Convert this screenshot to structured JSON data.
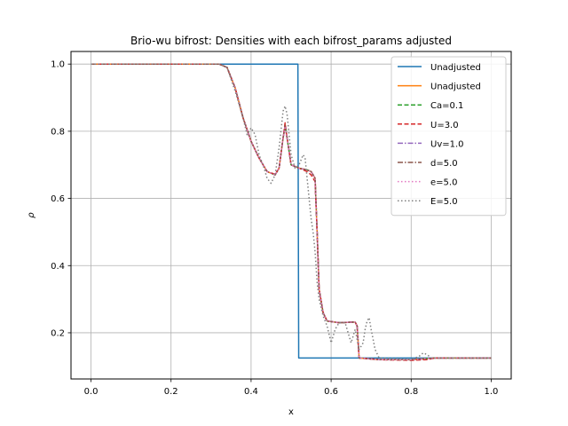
{
  "chart_data": {
    "type": "line",
    "title": "Brio-wu bifrost: Densities with each bifrost_params adjusted",
    "xlabel": "x",
    "ylabel": "ρ",
    "xlim": [
      -0.05,
      1.05
    ],
    "ylim": [
      0.0625,
      1.0375
    ],
    "xticks": [
      0.0,
      0.2,
      0.4,
      0.6,
      0.8,
      1.0
    ],
    "xtick_labels": [
      "0.0",
      "0.2",
      "0.4",
      "0.6",
      "0.8",
      "1.0"
    ],
    "yticks": [
      0.2,
      0.4,
      0.6,
      0.8,
      1.0
    ],
    "ytick_labels": [
      "0.2",
      "0.4",
      "0.6",
      "0.8",
      "1.0"
    ],
    "grid": true,
    "legend_position": "top-right",
    "series": [
      {
        "name": "Unadjusted",
        "color": "#1f77b4",
        "dash": "solid",
        "points": [
          [
            0.0,
            1.0
          ],
          [
            0.517,
            1.0
          ],
          [
            0.517,
            0.997
          ],
          [
            0.519,
            0.125
          ],
          [
            1.0,
            0.125
          ]
        ]
      },
      {
        "name": "Unadjusted",
        "color": "#ff7f0e",
        "dash": "solid",
        "points": [
          [
            0.0,
            1.0
          ],
          [
            0.32,
            1.0
          ],
          [
            0.34,
            0.99
          ],
          [
            0.36,
            0.93
          ],
          [
            0.38,
            0.84
          ],
          [
            0.4,
            0.77
          ],
          [
            0.42,
            0.72
          ],
          [
            0.44,
            0.68
          ],
          [
            0.46,
            0.67
          ],
          [
            0.47,
            0.69
          ],
          [
            0.48,
            0.78
          ],
          [
            0.485,
            0.815
          ],
          [
            0.49,
            0.78
          ],
          [
            0.5,
            0.7
          ],
          [
            0.52,
            0.69
          ],
          [
            0.54,
            0.685
          ],
          [
            0.55,
            0.68
          ],
          [
            0.56,
            0.66
          ],
          [
            0.565,
            0.5
          ],
          [
            0.57,
            0.33
          ],
          [
            0.58,
            0.26
          ],
          [
            0.59,
            0.235
          ],
          [
            0.62,
            0.23
          ],
          [
            0.66,
            0.232
          ],
          [
            0.665,
            0.22
          ],
          [
            0.67,
            0.125
          ],
          [
            0.72,
            0.12
          ],
          [
            0.8,
            0.12
          ],
          [
            0.86,
            0.125
          ],
          [
            1.0,
            0.125
          ]
        ]
      },
      {
        "name": "Ca=0.1",
        "color": "#2ca02c",
        "dash": "5,2.5",
        "points": [
          [
            0.0,
            1.0
          ],
          [
            0.32,
            1.0
          ],
          [
            0.34,
            0.99
          ],
          [
            0.36,
            0.93
          ],
          [
            0.38,
            0.84
          ],
          [
            0.4,
            0.77
          ],
          [
            0.42,
            0.72
          ],
          [
            0.44,
            0.68
          ],
          [
            0.46,
            0.67
          ],
          [
            0.47,
            0.69
          ],
          [
            0.48,
            0.78
          ],
          [
            0.485,
            0.82
          ],
          [
            0.49,
            0.78
          ],
          [
            0.5,
            0.7
          ],
          [
            0.52,
            0.69
          ],
          [
            0.54,
            0.685
          ],
          [
            0.55,
            0.68
          ],
          [
            0.56,
            0.66
          ],
          [
            0.565,
            0.5
          ],
          [
            0.57,
            0.33
          ],
          [
            0.58,
            0.26
          ],
          [
            0.59,
            0.235
          ],
          [
            0.62,
            0.23
          ],
          [
            0.66,
            0.232
          ],
          [
            0.665,
            0.22
          ],
          [
            0.67,
            0.125
          ],
          [
            0.72,
            0.12
          ],
          [
            0.8,
            0.12
          ],
          [
            0.86,
            0.125
          ],
          [
            1.0,
            0.125
          ]
        ]
      },
      {
        "name": "U=3.0",
        "color": "#d62728",
        "dash": "5,2.5",
        "points": [
          [
            0.0,
            1.0
          ],
          [
            0.32,
            1.0
          ],
          [
            0.34,
            0.99
          ],
          [
            0.36,
            0.93
          ],
          [
            0.38,
            0.84
          ],
          [
            0.4,
            0.77
          ],
          [
            0.42,
            0.72
          ],
          [
            0.44,
            0.68
          ],
          [
            0.46,
            0.672
          ],
          [
            0.47,
            0.69
          ],
          [
            0.48,
            0.78
          ],
          [
            0.485,
            0.825
          ],
          [
            0.49,
            0.78
          ],
          [
            0.5,
            0.7
          ],
          [
            0.52,
            0.69
          ],
          [
            0.54,
            0.68
          ],
          [
            0.55,
            0.67
          ],
          [
            0.56,
            0.65
          ],
          [
            0.565,
            0.5
          ],
          [
            0.57,
            0.33
          ],
          [
            0.58,
            0.26
          ],
          [
            0.59,
            0.235
          ],
          [
            0.62,
            0.23
          ],
          [
            0.66,
            0.232
          ],
          [
            0.665,
            0.22
          ],
          [
            0.67,
            0.125
          ],
          [
            0.72,
            0.12
          ],
          [
            0.8,
            0.118
          ],
          [
            0.84,
            0.12
          ],
          [
            0.86,
            0.125
          ],
          [
            1.0,
            0.125
          ]
        ]
      },
      {
        "name": "Uv=1.0",
        "color": "#9467bd",
        "dash": "6,2,1.5,2",
        "points": [
          [
            0.0,
            1.0
          ],
          [
            0.32,
            1.0
          ],
          [
            0.34,
            0.99
          ],
          [
            0.36,
            0.93
          ],
          [
            0.38,
            0.84
          ],
          [
            0.4,
            0.77
          ],
          [
            0.42,
            0.72
          ],
          [
            0.44,
            0.68
          ],
          [
            0.46,
            0.67
          ],
          [
            0.47,
            0.69
          ],
          [
            0.48,
            0.78
          ],
          [
            0.485,
            0.815
          ],
          [
            0.49,
            0.78
          ],
          [
            0.5,
            0.7
          ],
          [
            0.52,
            0.69
          ],
          [
            0.54,
            0.685
          ],
          [
            0.55,
            0.68
          ],
          [
            0.56,
            0.66
          ],
          [
            0.565,
            0.5
          ],
          [
            0.57,
            0.33
          ],
          [
            0.58,
            0.26
          ],
          [
            0.59,
            0.235
          ],
          [
            0.62,
            0.23
          ],
          [
            0.66,
            0.232
          ],
          [
            0.665,
            0.22
          ],
          [
            0.67,
            0.125
          ],
          [
            0.72,
            0.12
          ],
          [
            0.8,
            0.12
          ],
          [
            0.86,
            0.125
          ],
          [
            1.0,
            0.125
          ]
        ]
      },
      {
        "name": "d=5.0",
        "color": "#8c564b",
        "dash": "6,2,1.5,2",
        "points": [
          [
            0.0,
            1.0
          ],
          [
            0.32,
            1.0
          ],
          [
            0.34,
            0.99
          ],
          [
            0.36,
            0.93
          ],
          [
            0.38,
            0.84
          ],
          [
            0.4,
            0.77
          ],
          [
            0.42,
            0.72
          ],
          [
            0.44,
            0.68
          ],
          [
            0.46,
            0.67
          ],
          [
            0.47,
            0.69
          ],
          [
            0.48,
            0.78
          ],
          [
            0.485,
            0.815
          ],
          [
            0.49,
            0.78
          ],
          [
            0.5,
            0.7
          ],
          [
            0.52,
            0.69
          ],
          [
            0.54,
            0.685
          ],
          [
            0.55,
            0.68
          ],
          [
            0.56,
            0.66
          ],
          [
            0.565,
            0.5
          ],
          [
            0.57,
            0.33
          ],
          [
            0.58,
            0.26
          ],
          [
            0.59,
            0.235
          ],
          [
            0.62,
            0.23
          ],
          [
            0.66,
            0.232
          ],
          [
            0.665,
            0.22
          ],
          [
            0.67,
            0.125
          ],
          [
            0.72,
            0.12
          ],
          [
            0.8,
            0.12
          ],
          [
            0.86,
            0.125
          ],
          [
            1.0,
            0.125
          ]
        ]
      },
      {
        "name": "e=5.0",
        "color": "#e377c2",
        "dash": "1.5,2.5",
        "points": [
          [
            0.0,
            1.0
          ],
          [
            0.32,
            1.0
          ],
          [
            0.34,
            0.99
          ],
          [
            0.36,
            0.93
          ],
          [
            0.38,
            0.84
          ],
          [
            0.4,
            0.77
          ],
          [
            0.42,
            0.72
          ],
          [
            0.44,
            0.68
          ],
          [
            0.46,
            0.67
          ],
          [
            0.47,
            0.69
          ],
          [
            0.48,
            0.78
          ],
          [
            0.485,
            0.815
          ],
          [
            0.49,
            0.78
          ],
          [
            0.5,
            0.7
          ],
          [
            0.52,
            0.69
          ],
          [
            0.54,
            0.685
          ],
          [
            0.55,
            0.68
          ],
          [
            0.56,
            0.66
          ],
          [
            0.565,
            0.5
          ],
          [
            0.57,
            0.33
          ],
          [
            0.58,
            0.26
          ],
          [
            0.59,
            0.235
          ],
          [
            0.62,
            0.23
          ],
          [
            0.66,
            0.232
          ],
          [
            0.665,
            0.22
          ],
          [
            0.67,
            0.125
          ],
          [
            0.72,
            0.12
          ],
          [
            0.8,
            0.12
          ],
          [
            0.86,
            0.125
          ],
          [
            1.0,
            0.125
          ]
        ]
      },
      {
        "name": "E=5.0",
        "color": "#7f7f7f",
        "dash": "1.5,2.5",
        "points": [
          [
            0.0,
            1.0
          ],
          [
            0.32,
            1.0
          ],
          [
            0.34,
            0.99
          ],
          [
            0.36,
            0.92
          ],
          [
            0.38,
            0.84
          ],
          [
            0.39,
            0.79
          ],
          [
            0.4,
            0.81
          ],
          [
            0.41,
            0.79
          ],
          [
            0.42,
            0.73
          ],
          [
            0.43,
            0.7
          ],
          [
            0.44,
            0.66
          ],
          [
            0.45,
            0.645
          ],
          [
            0.46,
            0.67
          ],
          [
            0.47,
            0.75
          ],
          [
            0.48,
            0.86
          ],
          [
            0.485,
            0.875
          ],
          [
            0.49,
            0.85
          ],
          [
            0.5,
            0.73
          ],
          [
            0.51,
            0.69
          ],
          [
            0.52,
            0.7
          ],
          [
            0.53,
            0.73
          ],
          [
            0.535,
            0.72
          ],
          [
            0.54,
            0.66
          ],
          [
            0.545,
            0.6
          ],
          [
            0.55,
            0.54
          ],
          [
            0.555,
            0.5
          ],
          [
            0.56,
            0.44
          ],
          [
            0.565,
            0.35
          ],
          [
            0.57,
            0.3
          ],
          [
            0.58,
            0.25
          ],
          [
            0.59,
            0.22
          ],
          [
            0.6,
            0.17
          ],
          [
            0.61,
            0.21
          ],
          [
            0.62,
            0.23
          ],
          [
            0.635,
            0.23
          ],
          [
            0.645,
            0.19
          ],
          [
            0.65,
            0.17
          ],
          [
            0.66,
            0.21
          ],
          [
            0.67,
            0.15
          ],
          [
            0.68,
            0.17
          ],
          [
            0.685,
            0.21
          ],
          [
            0.69,
            0.235
          ],
          [
            0.695,
            0.245
          ],
          [
            0.7,
            0.21
          ],
          [
            0.71,
            0.15
          ],
          [
            0.72,
            0.125
          ],
          [
            0.8,
            0.12
          ],
          [
            0.82,
            0.13
          ],
          [
            0.83,
            0.14
          ],
          [
            0.84,
            0.135
          ],
          [
            0.85,
            0.125
          ],
          [
            1.0,
            0.125
          ]
        ]
      }
    ]
  }
}
